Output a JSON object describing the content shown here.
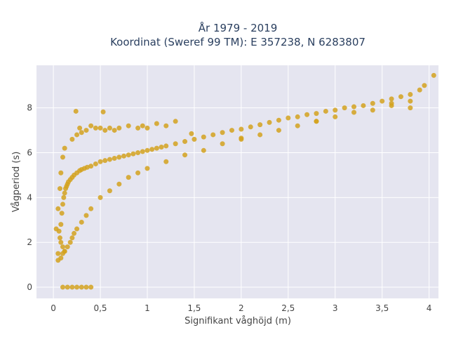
{
  "chart_data": {
    "type": "scatter",
    "title": "År 1979 - 2019",
    "subtitle": "Koordinat (Sweref 99 TM): E 357238, N 6283807",
    "xlabel": "Signifikant våghöjd (m)",
    "ylabel": "Vågperiod (s)",
    "xlim": [
      -0.18,
      4.1
    ],
    "ylim": [
      -0.5,
      9.9
    ],
    "x_ticks": [
      0,
      0.5,
      1,
      1.5,
      2,
      2.5,
      3,
      3.5,
      4
    ],
    "x_tick_labels": [
      "0",
      "0,5",
      "1",
      "1,5",
      "2",
      "2,5",
      "3",
      "3,5",
      "4"
    ],
    "y_ticks": [
      0,
      2,
      4,
      6,
      8
    ],
    "y_tick_labels": [
      "0",
      "2",
      "4",
      "6",
      "8"
    ],
    "grid": true,
    "legend": "none",
    "marker_color": "#D4A21E",
    "plot_background": "#E5E5F0",
    "series": [
      {
        "x": [
          0.05,
          0.07,
          0.08,
          0.09,
          0.1,
          0.11,
          0.12,
          0.13,
          0.14,
          0.15,
          0.16,
          0.18,
          0.2,
          0.22,
          0.25,
          0.28,
          0.3,
          0.33,
          0.36,
          0.4,
          0.45,
          0.5,
          0.55,
          0.6,
          0.65,
          0.7,
          0.75,
          0.8,
          0.85,
          0.9,
          0.95,
          1.0,
          1.05,
          1.1,
          1.15,
          1.2,
          1.3,
          1.4,
          1.5,
          1.6,
          1.7,
          1.8,
          1.9,
          2.0,
          2.1,
          2.2,
          2.3,
          2.4,
          2.5,
          2.6,
          2.7,
          2.8,
          2.9,
          3.0,
          3.1,
          3.2,
          3.3,
          3.4,
          3.5,
          3.6,
          3.7,
          3.8,
          3.9,
          3.95,
          4.05,
          0.05,
          0.08,
          0.1,
          0.12,
          0.15,
          0.18,
          0.2,
          0.22,
          0.25,
          0.3,
          0.35,
          0.4,
          0.5,
          0.6,
          0.7,
          0.8,
          0.9,
          1.0,
          1.2,
          1.4,
          1.6,
          1.8,
          2.0,
          2.2,
          2.4,
          2.6,
          2.8,
          3.0,
          3.2,
          3.4,
          3.6,
          3.8,
          0.03,
          0.05,
          0.07,
          0.08,
          0.1,
          0.12,
          0.2,
          0.25,
          0.28,
          0.3,
          0.35,
          0.4,
          0.45,
          0.5,
          0.55,
          0.6,
          0.65,
          0.7,
          0.8,
          0.9,
          1.0,
          1.1,
          1.2,
          1.3,
          0.1,
          0.15,
          0.2,
          0.25,
          0.3,
          0.35,
          0.4,
          0.06,
          0.08,
          0.1,
          0.12,
          0.24,
          0.53,
          0.95,
          1.47,
          2.0,
          2.8,
          3.6,
          3.8
        ],
        "y": [
          1.5,
          2.2,
          2.8,
          3.3,
          3.7,
          4.0,
          4.2,
          4.4,
          4.5,
          4.6,
          4.7,
          4.8,
          4.9,
          5.0,
          5.1,
          5.2,
          5.25,
          5.3,
          5.35,
          5.4,
          5.5,
          5.6,
          5.65,
          5.7,
          5.75,
          5.8,
          5.85,
          5.9,
          5.95,
          6.0,
          6.05,
          6.1,
          6.15,
          6.2,
          6.25,
          6.3,
          6.4,
          6.5,
          6.6,
          6.7,
          6.8,
          6.9,
          7.0,
          7.05,
          7.15,
          7.25,
          7.35,
          7.45,
          7.55,
          7.6,
          7.7,
          7.75,
          7.85,
          7.9,
          8.0,
          8.05,
          8.1,
          8.2,
          8.3,
          8.4,
          8.5,
          8.6,
          8.8,
          9.0,
          9.45,
          1.2,
          1.3,
          1.5,
          1.6,
          1.8,
          2.0,
          2.2,
          2.4,
          2.6,
          2.9,
          3.2,
          3.5,
          4.0,
          4.3,
          4.6,
          4.9,
          5.1,
          5.3,
          5.6,
          5.9,
          6.1,
          6.4,
          6.6,
          6.8,
          7.0,
          7.2,
          7.4,
          7.6,
          7.8,
          7.9,
          8.1,
          8.3,
          2.6,
          3.5,
          4.4,
          5.1,
          5.8,
          6.2,
          6.6,
          6.8,
          7.1,
          6.9,
          7.0,
          7.2,
          7.1,
          7.1,
          7.0,
          7.1,
          7.0,
          7.1,
          7.2,
          7.1,
          7.1,
          7.3,
          7.2,
          7.4,
          0.0,
          0.0,
          0.0,
          0.0,
          0.0,
          0.0,
          0.0,
          2.5,
          2.0,
          1.8,
          1.6,
          7.85,
          7.82,
          7.2,
          6.85,
          6.65,
          7.4,
          8.2,
          8.0
        ]
      }
    ]
  }
}
